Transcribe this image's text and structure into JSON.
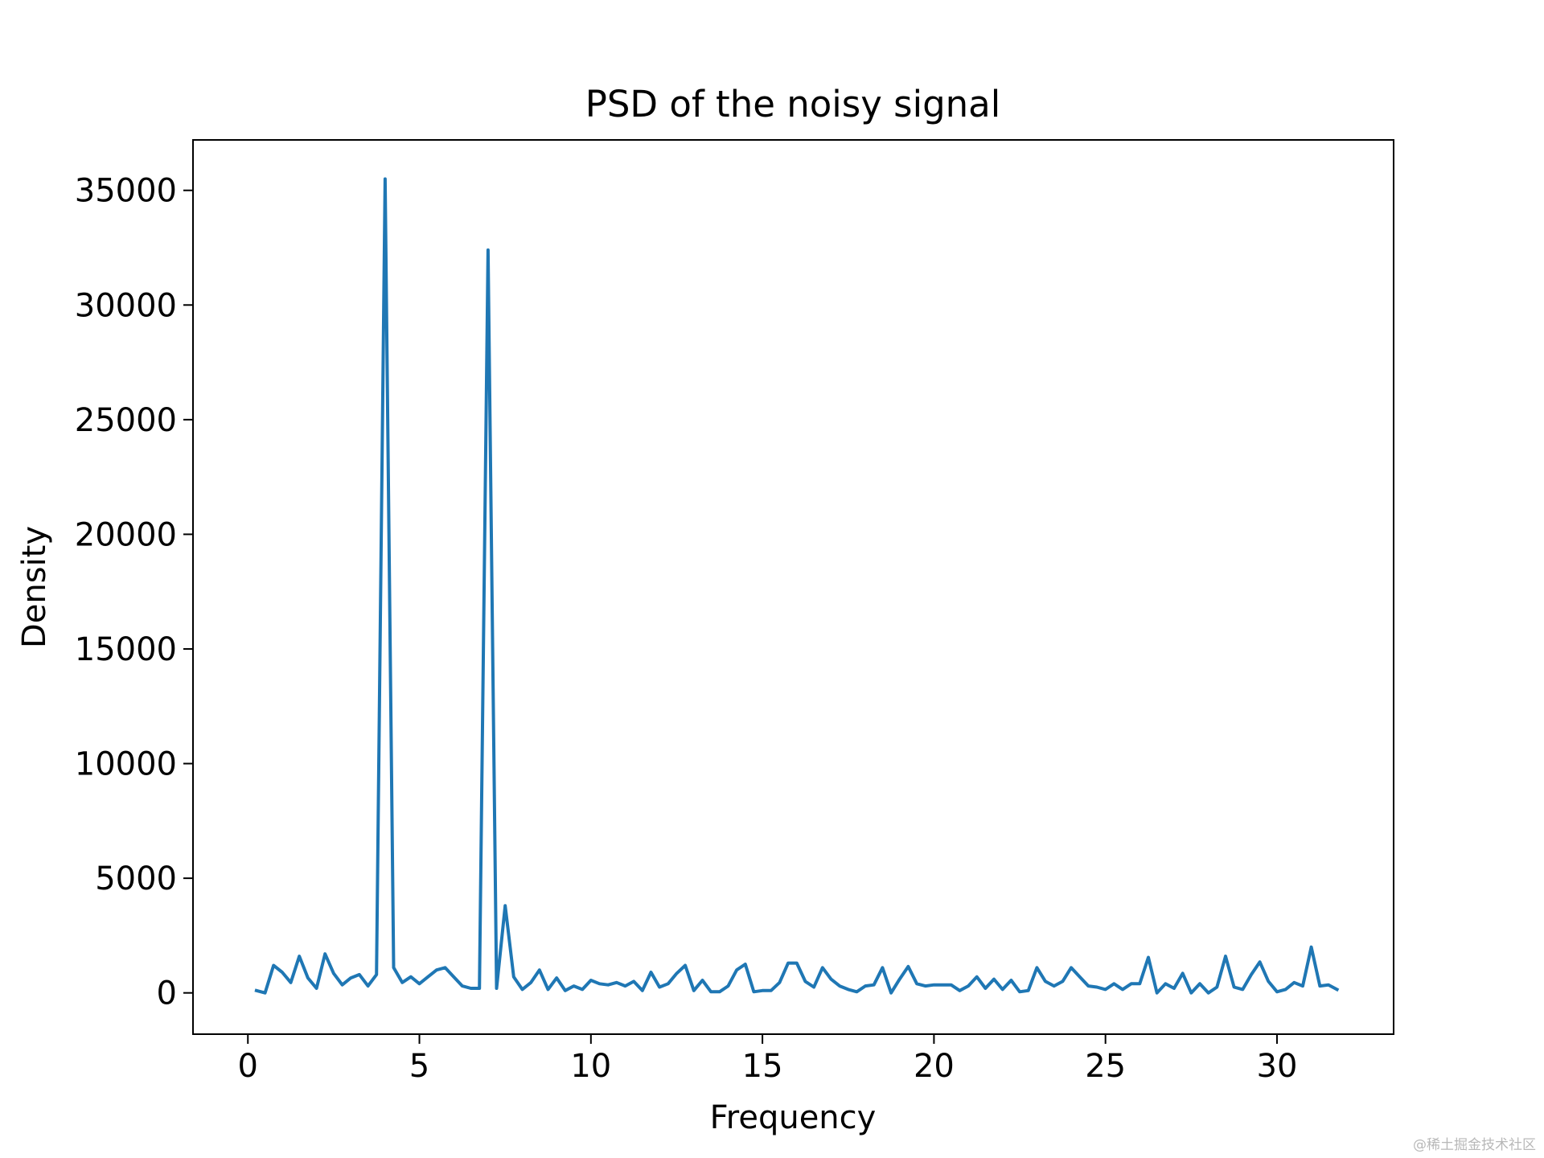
{
  "chart_data": {
    "type": "line",
    "title": "PSD of the noisy signal",
    "xlabel": "Frequency",
    "ylabel": "Density",
    "xlim": [
      -1.6,
      33.4
    ],
    "ylim": [
      -1800,
      37200
    ],
    "xticks": [
      0,
      5,
      10,
      15,
      20,
      25,
      30
    ],
    "xtick_labels": [
      "0",
      "5",
      "10",
      "15",
      "20",
      "25",
      "30"
    ],
    "yticks": [
      0,
      5000,
      10000,
      15000,
      20000,
      25000,
      30000,
      35000
    ],
    "ytick_labels": [
      "0",
      "5000",
      "10000",
      "15000",
      "20000",
      "25000",
      "30000",
      "35000"
    ],
    "grid": false,
    "legend": "none",
    "series": [
      {
        "color": "#1f77b4",
        "x": [
          0.25,
          0.5,
          0.75,
          1.0,
          1.25,
          1.5,
          1.75,
          2.0,
          2.25,
          2.5,
          2.75,
          3.0,
          3.25,
          3.5,
          3.75,
          4.0,
          4.25,
          4.5,
          4.75,
          5.0,
          5.25,
          5.5,
          5.75,
          6.0,
          6.25,
          6.5,
          6.75,
          7.0,
          7.25,
          7.5,
          7.75,
          8.0,
          8.25,
          8.5,
          8.75,
          9.0,
          9.25,
          9.5,
          9.75,
          10.0,
          10.25,
          10.5,
          10.75,
          11.0,
          11.25,
          11.5,
          11.75,
          12.0,
          12.25,
          12.5,
          12.75,
          13.0,
          13.25,
          13.5,
          13.75,
          14.0,
          14.25,
          14.5,
          14.75,
          15.0,
          15.25,
          15.5,
          15.75,
          16.0,
          16.25,
          16.5,
          16.75,
          17.0,
          17.25,
          17.5,
          17.75,
          18.0,
          18.25,
          18.5,
          18.75,
          19.0,
          19.25,
          19.5,
          19.75,
          20.0,
          20.25,
          20.5,
          20.75,
          21.0,
          21.25,
          21.5,
          21.75,
          22.0,
          22.25,
          22.5,
          22.75,
          23.0,
          23.25,
          23.5,
          23.75,
          24.0,
          24.25,
          24.5,
          24.75,
          25.0,
          25.25,
          25.5,
          25.75,
          26.0,
          26.25,
          26.5,
          26.75,
          27.0,
          27.25,
          27.5,
          27.75,
          28.0,
          28.25,
          28.5,
          28.75,
          29.0,
          29.25,
          29.5,
          29.75,
          30.0,
          30.25,
          30.5,
          30.75,
          31.0,
          31.25,
          31.5,
          31.75
        ],
        "y": [
          100,
          0,
          1200,
          900,
          450,
          1600,
          650,
          200,
          1700,
          850,
          350,
          650,
          800,
          300,
          800,
          35500,
          1100,
          450,
          700,
          400,
          700,
          1000,
          1100,
          700,
          300,
          200,
          200,
          32400,
          200,
          3800,
          700,
          150,
          450,
          1000,
          150,
          650,
          100,
          300,
          150,
          550,
          400,
          350,
          450,
          300,
          500,
          100,
          900,
          250,
          400,
          850,
          1200,
          100,
          550,
          50,
          50,
          300,
          1000,
          1250,
          50,
          100,
          100,
          450,
          1300,
          1300,
          500,
          250,
          1100,
          600,
          300,
          150,
          50,
          300,
          350,
          1100,
          0,
          600,
          1150,
          400,
          300,
          350,
          350,
          350,
          100,
          300,
          700,
          200,
          600,
          150,
          550,
          50,
          100,
          1100,
          500,
          300,
          500,
          1100,
          700,
          300,
          250,
          150,
          400,
          150,
          400,
          400,
          1550,
          0,
          400,
          200,
          850,
          0,
          400,
          0,
          250,
          1600,
          250,
          150,
          800,
          1350,
          500,
          50,
          150,
          450,
          300,
          2000,
          300,
          350,
          150
        ]
      }
    ]
  },
  "watermark": "@稀土掘金技术社区"
}
